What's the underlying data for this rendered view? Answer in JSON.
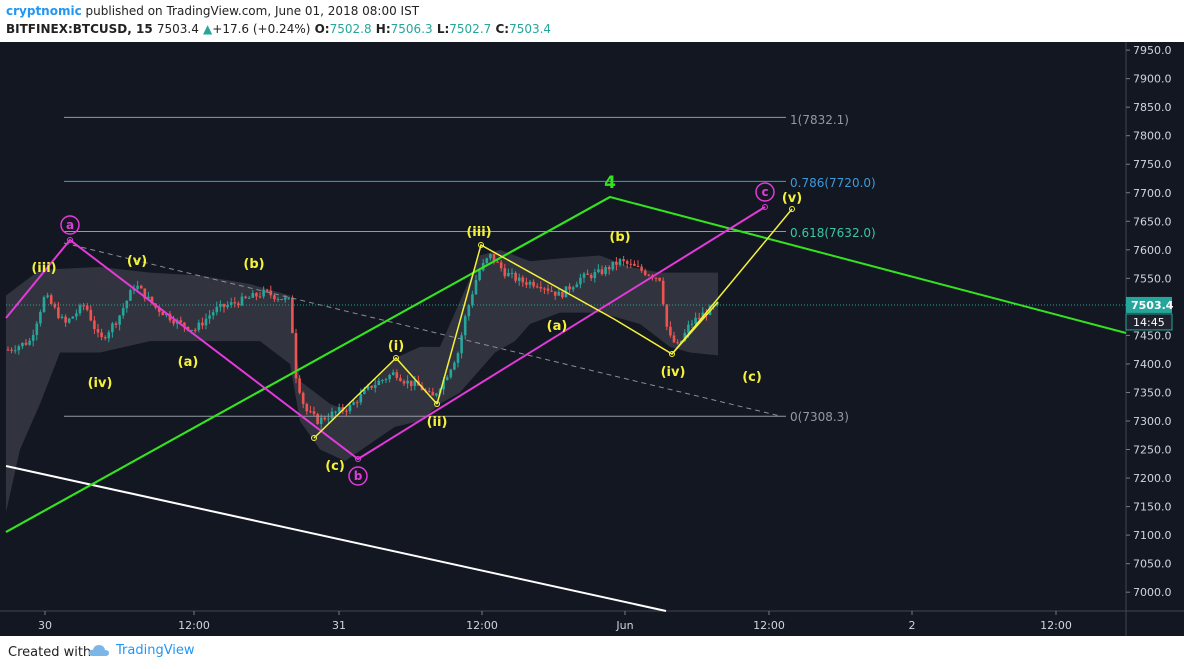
{
  "header": {
    "author": "cryptnomic",
    "published": "published on TradingView.com, June 01, 2018 08:00 IST",
    "symbol": "BITFINEX:BTCUSD, 15",
    "last": "7503.4",
    "change": "+17.6 (+0.24%)",
    "o_label": "O:",
    "o_val": "7502.8",
    "h_label": "H:",
    "h_val": "7506.3",
    "l_label": "L:",
    "l_val": "7502.7",
    "c_label": "C:",
    "c_val": "7503.4"
  },
  "footer": {
    "created_with": "Created with",
    "brand": "TradingView"
  },
  "colors": {
    "bg": "#131722",
    "up": "#26a69a",
    "down": "#ef5350",
    "green": "#34e21f",
    "magenta": "#e33ad9",
    "yellow": "#f5f23a",
    "fib_teal": "#39c7a6",
    "fib_blue": "#3b9ad9"
  },
  "chart_data": {
    "type": "candlestick",
    "y_ticks": [
      "7950.0",
      "7900.0",
      "7850.0",
      "7800.0",
      "7750.0",
      "7700.0",
      "7650.0",
      "7600.0",
      "7550.0",
      "7500.0",
      "7450.0",
      "7400.0",
      "7350.0",
      "7300.0",
      "7250.0",
      "7200.0",
      "7150.0",
      "7100.0",
      "7050.0",
      "7000.0"
    ],
    "x_ticks": [
      "30",
      "12:00",
      "31",
      "12:00",
      "Jun",
      "12:00",
      "2",
      "12:00"
    ],
    "price_label": "7503.4",
    "time_label": "14:45",
    "fib_levels": [
      {
        "label": "1(7832.1)"
      },
      {
        "label": "0.786(7720.0)"
      },
      {
        "label": "0.618(7632.0)"
      },
      {
        "label": "0(7308.3)"
      }
    ],
    "wave_labels": [
      {
        "text": "4"
      },
      {
        "text": "a"
      },
      {
        "text": "b"
      },
      {
        "text": "c"
      },
      {
        "text": "(iii)"
      },
      {
        "text": "(v)"
      },
      {
        "text": "(b)"
      },
      {
        "text": "(iv)"
      },
      {
        "text": "(a)"
      },
      {
        "text": "(i)"
      },
      {
        "text": "(c)"
      },
      {
        "text": "(ii)"
      },
      {
        "text": "(iii)"
      },
      {
        "text": "(b)"
      },
      {
        "text": "(a)"
      },
      {
        "text": "(v)"
      },
      {
        "text": "(iv)"
      },
      {
        "text": "(c)"
      }
    ]
  }
}
